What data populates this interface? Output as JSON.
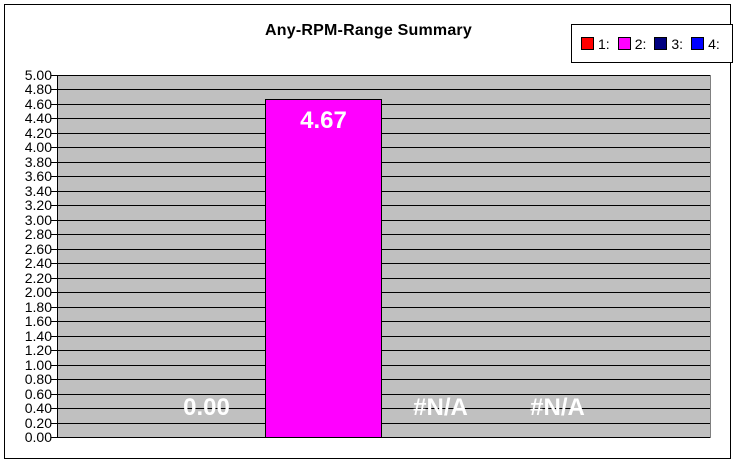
{
  "title": "Any-RPM-Range Summary",
  "legend": {
    "items": [
      {
        "label": "1:",
        "color": "#FF0000"
      },
      {
        "label": "2:",
        "color": "#FF00FF"
      },
      {
        "label": "3:",
        "color": "#000080"
      },
      {
        "label": "4:",
        "color": "#0000FF"
      }
    ]
  },
  "chart_data": {
    "type": "bar",
    "title": "Any-RPM-Range Summary",
    "categories": [
      ""
    ],
    "series": [
      {
        "name": "1:",
        "color": "#FF0000",
        "value": 0.0,
        "label": "0.00"
      },
      {
        "name": "2:",
        "color": "#FF00FF",
        "value": 4.67,
        "label": "4.67"
      },
      {
        "name": "3:",
        "color": "#000080",
        "value": null,
        "label": "#N/A"
      },
      {
        "name": "4:",
        "color": "#0000FF",
        "value": null,
        "label": "#N/A"
      }
    ],
    "xlabel": "",
    "ylabel": "",
    "ylim": [
      0,
      5
    ],
    "ytick_step": 0.2,
    "ytick_labels": [
      "5.00",
      "4.80",
      "4.60",
      "4.40",
      "4.20",
      "4.00",
      "3.80",
      "3.60",
      "3.40",
      "3.20",
      "3.00",
      "2.80",
      "2.60",
      "2.40",
      "2.20",
      "2.00",
      "1.80",
      "1.60",
      "1.40",
      "1.20",
      "1.00",
      "0.80",
      "0.60",
      "0.40",
      "0.20",
      "0.00"
    ],
    "grid": true,
    "legend_position": "top-right",
    "plot_bg_color": "#C0C0C0",
    "gridline_color": "#000000",
    "data_label_color": "#FFFFFF",
    "background_color": "#FFFFFF",
    "border_color": "#000000"
  }
}
